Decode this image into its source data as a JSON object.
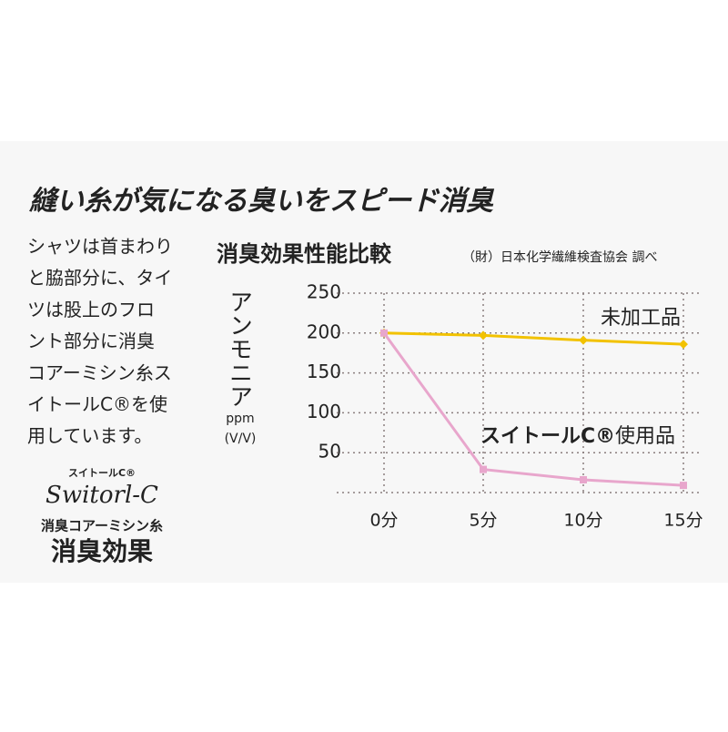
{
  "headline": "縫い糸が気になる臭いをスピード消臭",
  "body_lines": [
    "シャツは首まわり",
    "と脇部分に、タイ",
    "ツは股上のフロ",
    "ント部分に消臭",
    "コアーミシン糸ス",
    "イトールC®を使",
    "用しています。"
  ],
  "logo": {
    "brand_small": "スイトールC®",
    "brand_script": "Switorl-C",
    "product": "消臭コアーミシン糸",
    "effect": "消臭効果"
  },
  "chart_data": {
    "type": "line",
    "title": "消臭効果性能比較",
    "source": "（財）日本化学繊維検査協会 調べ",
    "y_label": "アンモニア",
    "y_unit": "ppm",
    "y_unit2": "(V/V)",
    "categories": [
      "0分",
      "5分",
      "10分",
      "15分"
    ],
    "series": [
      {
        "name": "未加工品",
        "color": "#f2c200",
        "values": [
          200,
          197,
          191,
          186
        ]
      },
      {
        "name": "使用品",
        "color": "#e8a6cc",
        "values": [
          200,
          29,
          16,
          9
        ]
      }
    ],
    "annotation": "スイトールC®",
    "ylim": [
      0,
      250
    ],
    "yticks": [
      50,
      100,
      150,
      200,
      250
    ],
    "grid": true
  }
}
